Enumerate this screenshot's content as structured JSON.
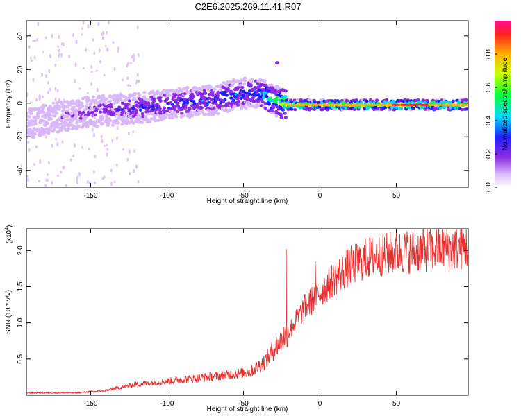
{
  "title": "C2E6.2025.269.11.41.R07",
  "colorbar": {
    "label": "Normalized spectral amplitude",
    "range": [
      0,
      1
    ],
    "tick_values": [
      0.0,
      0.2,
      0.4,
      0.6,
      0.8
    ],
    "tick_labels": [
      "0.0",
      "0.2",
      "0.4",
      "0.6",
      "0.8"
    ]
  },
  "colors": {
    "snr_line": "#e83030",
    "axes": "#000000"
  },
  "chart_data": [
    {
      "type": "heatmap",
      "name": "spectrogram",
      "xlabel": "Height of straight line (km)",
      "ylabel": "Frequency (Hz)",
      "xlim": [
        -192,
        97
      ],
      "ylim": [
        -50,
        49
      ],
      "x_tick_values": [
        -150,
        -100,
        -50,
        0,
        50
      ],
      "x_tick_labels": [
        "-150",
        "-100",
        "-50",
        "0",
        "50"
      ],
      "y_tick_values": [
        -40,
        -20,
        0,
        20,
        40
      ],
      "y_tick_labels": [
        "-40",
        "-20",
        "0",
        "20",
        "40"
      ],
      "ridge": {
        "height_km": [
          -190,
          -170,
          -150,
          -130,
          -110,
          -90,
          -70,
          -50,
          -40,
          -30,
          -25,
          -20,
          0,
          20,
          40,
          60,
          80,
          95
        ],
        "frequency_hz": [
          -12,
          -8,
          -5,
          -4,
          -2,
          0,
          2,
          6,
          6,
          2,
          0,
          -1,
          -1,
          -1,
          -1,
          -1,
          -1,
          -1
        ],
        "amplitude": [
          0.15,
          0.2,
          0.25,
          0.3,
          0.35,
          0.4,
          0.4,
          0.45,
          0.45,
          0.6,
          0.75,
          0.85,
          0.85,
          0.9,
          0.9,
          0.95,
          0.9,
          0.9
        ]
      },
      "annotations": [
        {
          "height_km": -28,
          "frequency_hz": 24,
          "text": ""
        }
      ]
    },
    {
      "type": "line",
      "name": "snr",
      "xlabel": "Height of straight line (km)",
      "ylabel": "SNR (10 * v/v)",
      "multiplier": "(x10",
      "multiplier_exp": "4",
      "multiplier_close": ")",
      "xlim": [
        -192,
        97
      ],
      "ylim": [
        0,
        2.3
      ],
      "x_tick_values": [
        -150,
        -100,
        -50,
        0,
        50
      ],
      "x_tick_labels": [
        "-150",
        "-100",
        "-50",
        "0",
        "50"
      ],
      "y_tick_values": [
        0.5,
        1.0,
        1.5,
        2.0
      ],
      "y_tick_labels": [
        "0.5",
        "1.0",
        "1.5",
        "2.0"
      ],
      "envelope": {
        "x": [
          -192,
          -160,
          -140,
          -130,
          -120,
          -100,
          -80,
          -60,
          -45,
          -35,
          -30,
          -25,
          -20,
          -15,
          -10,
          0,
          10,
          20,
          30,
          40,
          60,
          70,
          80,
          97
        ],
        "y": [
          0.03,
          0.03,
          0.06,
          0.1,
          0.14,
          0.18,
          0.22,
          0.26,
          0.3,
          0.45,
          0.6,
          0.7,
          0.85,
          1.0,
          1.15,
          1.35,
          1.55,
          1.7,
          1.8,
          1.85,
          1.9,
          1.92,
          1.93,
          1.95
        ]
      },
      "spikes": [
        {
          "x": -22,
          "y": 2.02
        },
        {
          "x": -3,
          "y": 1.85
        },
        {
          "x": 70,
          "y": 2.28
        }
      ]
    }
  ]
}
